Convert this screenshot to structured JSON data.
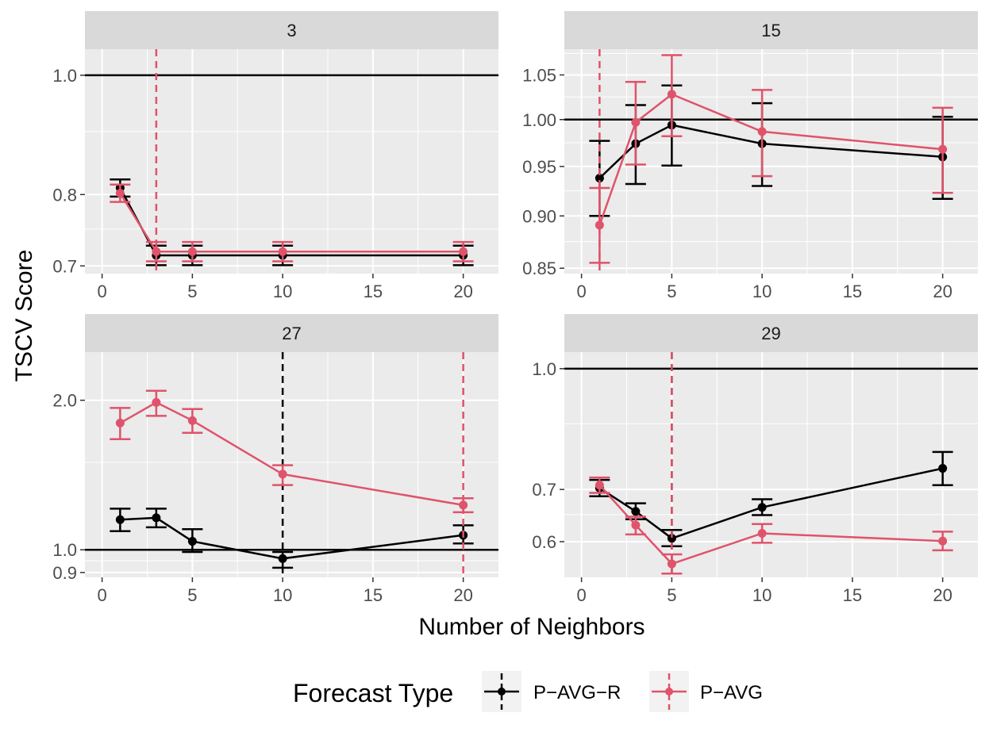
{
  "chart_data": {
    "type": "line",
    "xlabel": "Number of Neighbors",
    "ylabel": "TSCV Score",
    "legend": {
      "title": "Forecast Type",
      "position": "bottom",
      "entries": [
        {
          "name": "P−AVG−R",
          "color": "#000000"
        },
        {
          "name": "P−AVG",
          "color": "#df536b"
        }
      ]
    },
    "panels": [
      {
        "strip": "3",
        "xlim": [
          -0.95,
          21.95
        ],
        "xticks": [
          0,
          5,
          10,
          15,
          20
        ],
        "xtick_labels": [
          "0",
          "5",
          "10",
          "15",
          "20"
        ],
        "ylim": [
          0.69,
          1.05
        ],
        "yscale": "log",
        "yticks": [
          0.7,
          0.8,
          1.0
        ],
        "ytick_labels": [
          "0.7",
          "0.8",
          "1.0"
        ],
        "minor_y": [
          0.75,
          0.9
        ],
        "reference_line": 1.0,
        "series": [
          {
            "name": "P−AVG−R",
            "color": "#000000",
            "x": [
              1,
              3,
              5,
              10,
              20
            ],
            "y": [
              0.81,
              0.714,
              0.714,
              0.714,
              0.714
            ],
            "lower": [
              0.797,
              0.701,
              0.701,
              0.701,
              0.701
            ],
            "upper": [
              0.823,
              0.727,
              0.727,
              0.727,
              0.727
            ],
            "vline": null
          },
          {
            "name": "P−AVG",
            "color": "#df536b",
            "x": [
              1,
              3,
              5,
              10,
              20
            ],
            "y": [
              0.802,
              0.719,
              0.719,
              0.719,
              0.719
            ],
            "lower": [
              0.789,
              0.706,
              0.706,
              0.706,
              0.706
            ],
            "upper": [
              0.815,
              0.732,
              0.732,
              0.732,
              0.732
            ],
            "vline": 3
          }
        ]
      },
      {
        "strip": "15",
        "xlim": [
          -0.95,
          21.95
        ],
        "xticks": [
          0,
          5,
          10,
          15,
          20
        ],
        "xtick_labels": [
          "0",
          "5",
          "10",
          "15",
          "20"
        ],
        "ylim": [
          0.845,
          1.08
        ],
        "yscale": "log",
        "yticks": [
          0.85,
          0.9,
          0.95,
          1.0,
          1.05
        ],
        "ytick_labels": [
          "0.85",
          "0.90",
          "0.95",
          "1.00",
          "1.05"
        ],
        "minor_y": [
          0.875,
          0.925,
          0.975,
          1.025,
          1.075
        ],
        "reference_line": 1.0,
        "series": [
          {
            "name": "P−AVG−R",
            "color": "#000000",
            "x": [
              1,
              3,
              5,
              10,
              20
            ],
            "y": [
              0.938,
              0.974,
              0.994,
              0.974,
              0.96
            ],
            "lower": [
              0.9,
              0.932,
              0.951,
              0.93,
              0.917
            ],
            "upper": [
              0.977,
              1.016,
              1.038,
              1.018,
              1.003
            ],
            "vline": null
          },
          {
            "name": "P−AVG",
            "color": "#df536b",
            "x": [
              1,
              3,
              5,
              10,
              20
            ],
            "y": [
              0.891,
              0.997,
              1.028,
              0.987,
              0.968
            ],
            "lower": [
              0.855,
              0.952,
              0.982,
              0.94,
              0.923
            ],
            "upper": [
              0.928,
              1.042,
              1.073,
              1.033,
              1.013
            ],
            "vline": 1
          }
        ]
      },
      {
        "strip": "27",
        "xlim": [
          -0.95,
          21.95
        ],
        "xticks": [
          0,
          5,
          10,
          15,
          20
        ],
        "xtick_labels": [
          "0",
          "5",
          "10",
          "15",
          "20"
        ],
        "ylim": [
          0.88,
          2.5
        ],
        "yscale": "log",
        "yticks": [
          0.9,
          1.0,
          2.0
        ],
        "ytick_labels": [
          "0.9",
          "1.0",
          "2.0"
        ],
        "minor_y": [
          0.95,
          1.5
        ],
        "reference_line": 1.0,
        "series": [
          {
            "name": "P−AVG−R",
            "color": "#000000",
            "x": [
              1,
              3,
              5,
              10,
              20
            ],
            "y": [
              1.15,
              1.16,
              1.04,
              0.96,
              1.07
            ],
            "lower": [
              1.09,
              1.11,
              0.99,
              0.92,
              1.03
            ],
            "upper": [
              1.21,
              1.21,
              1.1,
              0.99,
              1.12
            ],
            "vline": 10
          },
          {
            "name": "P−AVG",
            "color": "#df536b",
            "x": [
              1,
              3,
              5,
              10,
              20
            ],
            "y": [
              1.8,
              1.98,
              1.82,
              1.42,
              1.23
            ],
            "lower": [
              1.67,
              1.86,
              1.72,
              1.35,
              1.19
            ],
            "upper": [
              1.93,
              2.09,
              1.92,
              1.48,
              1.27
            ],
            "vline": 20
          }
        ]
      },
      {
        "strip": "29",
        "xlim": [
          -0.95,
          21.95
        ],
        "xticks": [
          0,
          5,
          10,
          15,
          20
        ],
        "xtick_labels": [
          "0",
          "5",
          "10",
          "15",
          "20"
        ],
        "ylim": [
          0.54,
          1.05
        ],
        "yscale": "log",
        "yticks": [
          0.6,
          0.7,
          1.0
        ],
        "ytick_labels": [
          "0.6",
          "0.7",
          "1.0"
        ],
        "minor_y": [
          0.65,
          0.85
        ],
        "reference_line": 1.0,
        "series": [
          {
            "name": "P−AVG−R",
            "color": "#000000",
            "x": [
              1,
              3,
              5,
              10,
              20
            ],
            "y": [
              0.703,
              0.656,
              0.606,
              0.664,
              0.745
            ],
            "lower": [
              0.686,
              0.641,
              0.592,
              0.649,
              0.709
            ],
            "upper": [
              0.72,
              0.672,
              0.621,
              0.68,
              0.782
            ],
            "vline": 5
          },
          {
            "name": "P−AVG",
            "color": "#df536b",
            "x": [
              1,
              3,
              5,
              10,
              20
            ],
            "y": [
              0.709,
              0.63,
              0.562,
              0.615,
              0.601
            ],
            "lower": [
              0.693,
              0.613,
              0.546,
              0.598,
              0.585
            ],
            "upper": [
              0.725,
              0.646,
              0.578,
              0.632,
              0.618
            ],
            "vline": 5
          }
        ]
      }
    ]
  }
}
